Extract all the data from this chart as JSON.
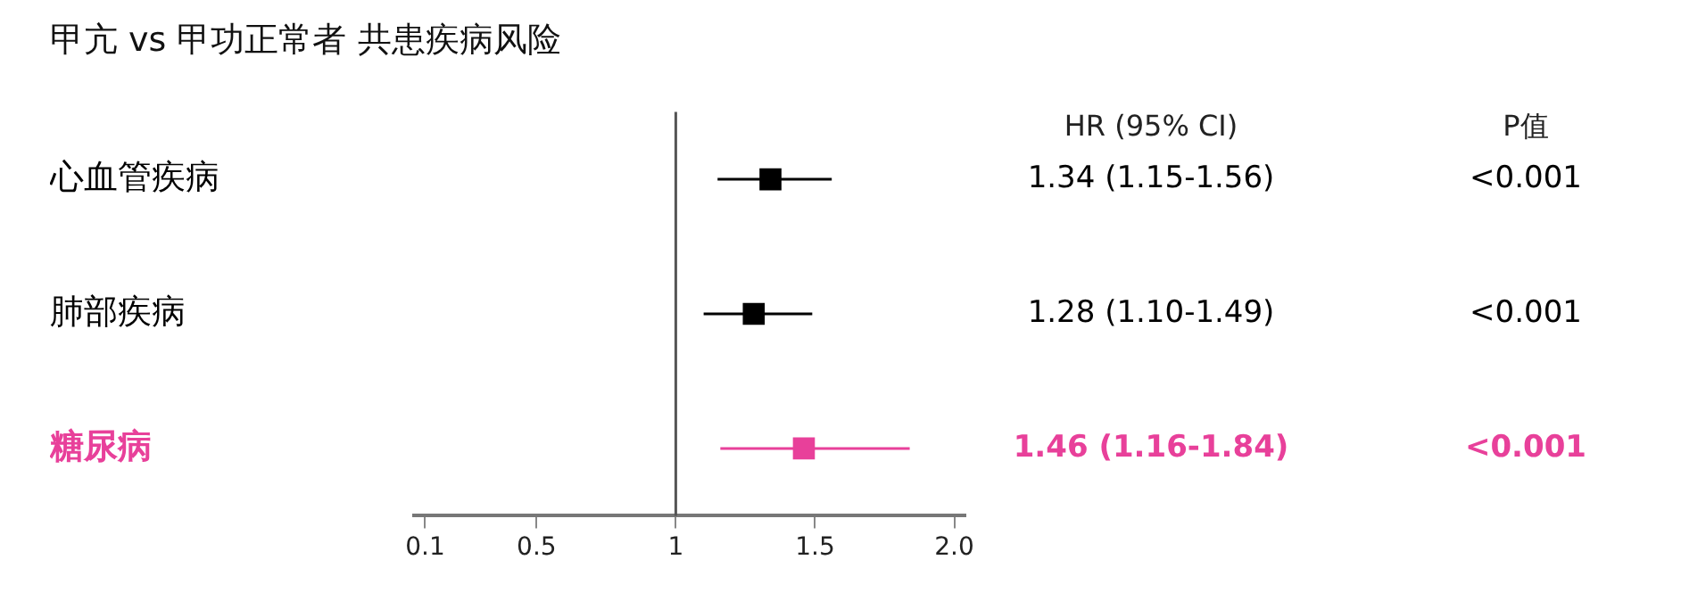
{
  "chart_data": {
    "type": "scatter",
    "orientation": "horizontal",
    "title": "甲亢 vs 甲功正常者 共患疾病风险",
    "categories": [
      "心血管疾病",
      "肺部疾病",
      "糖尿病"
    ],
    "values": [
      1.34,
      1.28,
      1.46
    ],
    "errors": [
      [
        1.15,
        1.56
      ],
      [
        1.1,
        1.49
      ],
      [
        1.16,
        1.84
      ]
    ],
    "colors": [
      "#000000",
      "#000000",
      "#e8409a"
    ],
    "marker": "square",
    "xlim": [
      0.06,
      2.04
    ],
    "xticks": [
      0.1,
      0.5,
      1,
      1.5,
      {
        "value": 2,
        "label": "2.0"
      }
    ],
    "ref_lines": [
      {
        "axis": "x",
        "value": 1,
        "color": "#555555"
      }
    ],
    "grid": false,
    "legend": false,
    "annotations": [
      "HR (95% CI)",
      "P值",
      "1.34 (1.15-1.56)",
      "<0.001",
      "1.28 (1.10-1.49)",
      "<0.001",
      "1.46 (1.16-1.84)",
      "<0.001"
    ]
  }
}
